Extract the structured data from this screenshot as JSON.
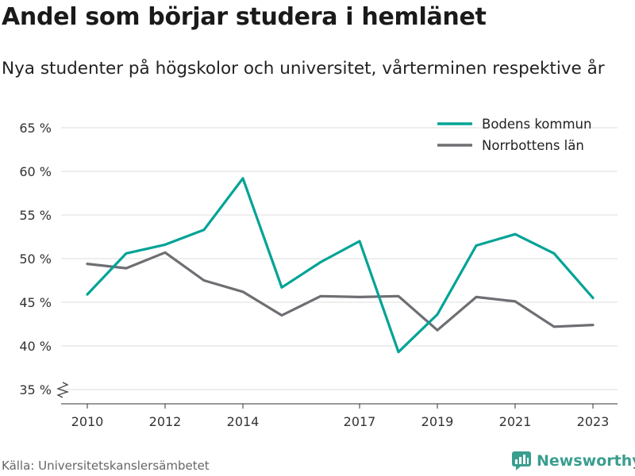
{
  "title": "Andel som börjar studera i hemlänet",
  "subtitle": "Nya studenter på högskolor och universitet, vårterminen respektive år",
  "source": "Källa: Universitetskanslersämbetet",
  "brand": {
    "name": "Newsworthy",
    "icon": "newsworthy-logo-icon",
    "color": "#3a9e8f"
  },
  "chart_data": {
    "type": "line",
    "x": [
      2010,
      2011,
      2012,
      2013,
      2014,
      2015,
      2016,
      2017,
      2018,
      2019,
      2020,
      2021,
      2022,
      2023
    ],
    "x_ticks": [
      "2010",
      "2012",
      "2014",
      "2017",
      "2019",
      "2021",
      "2023"
    ],
    "y_ticks": [
      "35 %",
      "40 %",
      "45 %",
      "50 %",
      "55 %",
      "60 %",
      "65 %"
    ],
    "ylim": [
      35,
      65
    ],
    "y_axis_break": true,
    "grid": true,
    "legend_position": "top-right",
    "series": [
      {
        "name": "Bodens kommun",
        "color": "#00a396",
        "values": [
          45.9,
          50.6,
          51.6,
          53.3,
          59.2,
          46.7,
          49.6,
          52.0,
          39.3,
          43.6,
          51.5,
          52.8,
          50.6,
          45.5
        ]
      },
      {
        "name": "Norrbottens län",
        "color": "#6e6e73",
        "values": [
          49.4,
          48.9,
          50.7,
          47.5,
          46.2,
          43.5,
          45.7,
          45.6,
          45.7,
          41.8,
          45.6,
          45.1,
          42.2,
          42.4
        ]
      }
    ]
  }
}
